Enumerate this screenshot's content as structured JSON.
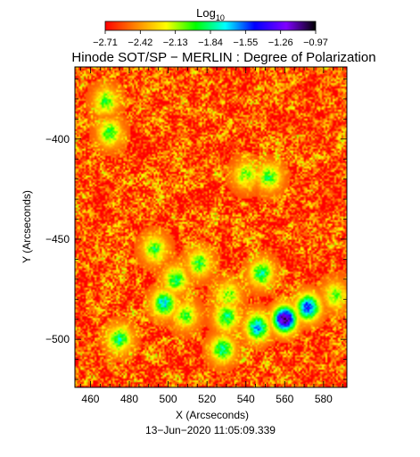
{
  "chart_data": {
    "type": "heatmap",
    "title": "Hinode SOT/SP − MERLIN : Degree of Polarization",
    "colorbar": {
      "label_base": "Log",
      "label_sub": "10",
      "ticks": [
        -2.71,
        -2.42,
        -2.13,
        -1.84,
        -1.55,
        -1.26,
        -0.97
      ],
      "tick_labels": [
        "−2.71",
        "−2.42",
        "−2.13",
        "−1.84",
        "−1.55",
        "−1.26",
        "−0.97"
      ],
      "range": [
        -2.71,
        -0.97
      ],
      "colors": [
        "#ff0000",
        "#ff8000",
        "#ffff00",
        "#00ff00",
        "#00ffff",
        "#0000ff",
        "#8000ff",
        "#000000"
      ]
    },
    "xlabel": "X (Arcseconds)",
    "ylabel": "Y (Arcseconds)",
    "xlim": [
      452,
      592
    ],
    "ylim": [
      -524,
      -364
    ],
    "x_ticks": [
      460,
      480,
      500,
      520,
      540,
      560,
      580
    ],
    "x_tick_labels": [
      "460",
      "480",
      "500",
      "520",
      "540",
      "560",
      "580"
    ],
    "y_ticks": [
      -400,
      -450,
      -500
    ],
    "y_tick_labels": [
      "−400",
      "−450",
      "−500"
    ],
    "timestamp": "13−Jun−2020 11:05:09.339",
    "background_level": -2.55,
    "features": [
      {
        "x": 560,
        "y": -490,
        "peak": -1.05
      },
      {
        "x": 572,
        "y": -484,
        "peak": -1.45
      },
      {
        "x": 546,
        "y": -494,
        "peak": -1.6
      },
      {
        "x": 530,
        "y": -489,
        "peak": -1.85
      },
      {
        "x": 498,
        "y": -482,
        "peak": -1.7
      },
      {
        "x": 504,
        "y": -470,
        "peak": -1.9
      },
      {
        "x": 516,
        "y": -462,
        "peak": -1.95
      },
      {
        "x": 548,
        "y": -467,
        "peak": -1.85
      },
      {
        "x": 528,
        "y": -505,
        "peak": -1.8
      },
      {
        "x": 475,
        "y": -500,
        "peak": -1.85
      },
      {
        "x": 493,
        "y": -455,
        "peak": -1.95
      },
      {
        "x": 509,
        "y": -488,
        "peak": -2.0
      },
      {
        "x": 531,
        "y": -478,
        "peak": -2.05
      },
      {
        "x": 586,
        "y": -478,
        "peak": -2.05
      },
      {
        "x": 470,
        "y": -397,
        "peak": -1.95
      },
      {
        "x": 540,
        "y": -418,
        "peak": -2.05
      },
      {
        "x": 552,
        "y": -419,
        "peak": -1.95
      },
      {
        "x": 468,
        "y": -381,
        "peak": -2.0
      }
    ]
  }
}
